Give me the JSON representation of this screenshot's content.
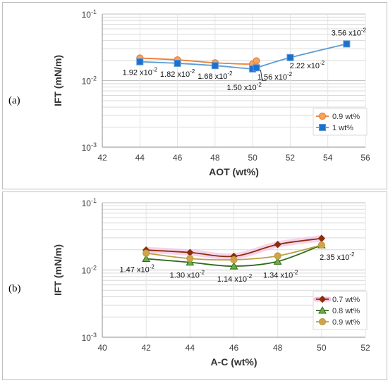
{
  "chart_data": [
    {
      "panel": "(a)",
      "type": "line",
      "xlabel": "AOT (wt%)",
      "ylabel": "IFT (mN/m)",
      "xlim": [
        42,
        56
      ],
      "xticks": [
        "42",
        "44",
        "46",
        "48",
        "50",
        "52",
        "54",
        "56"
      ],
      "ylim": [
        0.001,
        0.1
      ],
      "yscale": "log",
      "yticks": [
        {
          "base": "10",
          "exp": "-1",
          "value": 0.1
        },
        {
          "base": "10",
          "exp": "-2",
          "value": 0.01
        },
        {
          "base": "10",
          "exp": "-3",
          "value": 0.001
        }
      ],
      "grid": true,
      "legend_position": "right",
      "series": [
        {
          "name": "0.9 wt%",
          "marker": "circle",
          "color": "#ed7d31",
          "fill": "#f4a460",
          "x": [
            44,
            46,
            48,
            50,
            50.2
          ],
          "y": [
            0.0218,
            0.0205,
            0.0185,
            0.0178,
            0.0198
          ]
        },
        {
          "name": "1 wt%",
          "marker": "square",
          "color": "#5b9bd5",
          "fill": "#1f6fd0",
          "x": [
            44,
            46,
            48,
            50,
            50.2,
            52,
            55
          ],
          "y": [
            0.0192,
            0.0182,
            0.0168,
            0.015,
            0.0156,
            0.0222,
            0.0356
          ]
        }
      ],
      "annotations": [
        {
          "text": "1.92 x10",
          "exp": "-2",
          "x": 44,
          "y": 0.0192
        },
        {
          "text": "1.82 x10",
          "exp": "-2",
          "x": 46,
          "y": 0.0182
        },
        {
          "text": "1.68 x10",
          "exp": "-2",
          "x": 48,
          "y": 0.0168
        },
        {
          "text": "1.50 x10",
          "exp": "-2",
          "x": 50,
          "y": 0.015
        },
        {
          "text": "1.56 x10",
          "exp": "-2",
          "x": 50.2,
          "y": 0.0156
        },
        {
          "text": "2.22 x10",
          "exp": "-2",
          "x": 52,
          "y": 0.0222
        },
        {
          "text": "3.56 x10",
          "exp": "-2",
          "x": 55,
          "y": 0.0356
        }
      ]
    },
    {
      "panel": "(b)",
      "type": "line",
      "xlabel": "A-C (wt%)",
      "ylabel": "IFT (mN/m)",
      "xlim": [
        40,
        52
      ],
      "xticks": [
        "40",
        "42",
        "44",
        "46",
        "48",
        "50",
        "52"
      ],
      "ylim": [
        0.001,
        0.1
      ],
      "yscale": "log",
      "yticks": [
        {
          "base": "10",
          "exp": "-1",
          "value": 0.1
        },
        {
          "base": "10",
          "exp": "-2",
          "value": 0.01
        },
        {
          "base": "10",
          "exp": "-3",
          "value": 0.001
        }
      ],
      "grid": true,
      "legend_position": "right",
      "series": [
        {
          "name": "0.7 wt%",
          "marker": "diamond",
          "color": "#8b2e0e",
          "fill": "#8b2e0e",
          "highlight": "#f3c2e1",
          "x": [
            42,
            44,
            46,
            48,
            50
          ],
          "y": [
            0.0198,
            0.0182,
            0.016,
            0.024,
            0.0295
          ]
        },
        {
          "name": "0.8 wt%",
          "marker": "triangle",
          "color": "#2e6b1a",
          "fill": "#70ad47",
          "x": [
            42,
            44,
            46,
            48,
            50
          ],
          "y": [
            0.0147,
            0.013,
            0.0114,
            0.0134,
            0.0235
          ]
        },
        {
          "name": "0.9 wt%",
          "marker": "circle",
          "color": "#b8a043",
          "fill": "#d4a24c",
          "x": [
            42,
            44,
            46,
            48,
            50
          ],
          "y": [
            0.0178,
            0.0148,
            0.0142,
            0.0162,
            0.0235
          ]
        }
      ],
      "annotations": [
        {
          "text": "1.47 x10",
          "exp": "-2",
          "x": 42,
          "y": 0.0147
        },
        {
          "text": "1.30 x10",
          "exp": "-2",
          "x": 44,
          "y": 0.013
        },
        {
          "text": "1.14 x10",
          "exp": "-2",
          "x": 46,
          "y": 0.0114
        },
        {
          "text": "1.34 x10",
          "exp": "-2",
          "x": 48,
          "y": 0.0134
        },
        {
          "text": "2.35 x10",
          "exp": "-2",
          "x": 50,
          "y": 0.0235
        }
      ]
    }
  ]
}
